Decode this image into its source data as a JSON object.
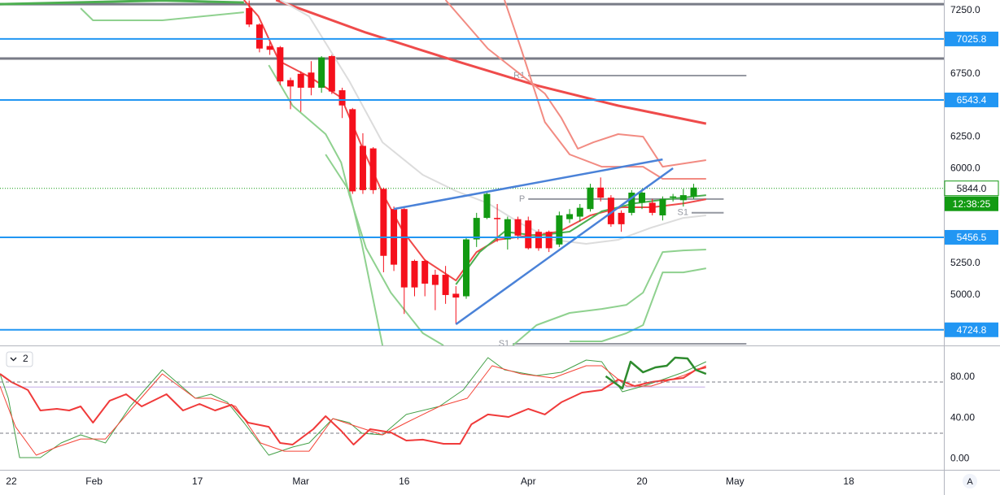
{
  "chart_data": [
    {
      "type": "candlestick",
      "x": [
        -5,
        -4,
        -3,
        -2,
        -1,
        0,
        1,
        2,
        3,
        4,
        5,
        6,
        7,
        8,
        9,
        10,
        11,
        12,
        13,
        14,
        15,
        16,
        17,
        18,
        19,
        20,
        21,
        22,
        23,
        24,
        25,
        26,
        27,
        28,
        29,
        30,
        31,
        32,
        33,
        34,
        35,
        36,
        37,
        38
      ],
      "open": [
        7270,
        7140,
        6970,
        6960,
        6700,
        6750,
        6760,
        6640,
        6890,
        6620,
        6470,
        6180,
        6160,
        5840,
        5680,
        5680,
        5270,
        5270,
        5160,
        5160,
        5010,
        4990,
        5440,
        5610,
        5610,
        5440,
        5600,
        5590,
        5500,
        5500,
        5400,
        5600,
        5620,
        5680,
        5850,
        5770,
        5650,
        5650,
        5730,
        5730,
        5630,
        5770,
        5750,
        5780
      ],
      "high": [
        7330,
        7150,
        7000,
        6970,
        6720,
        6770,
        6850,
        6890,
        6900,
        6640,
        6480,
        6280,
        6170,
        5850,
        5700,
        5690,
        5280,
        5280,
        5200,
        5230,
        5070,
        5460,
        5650,
        5810,
        5720,
        5620,
        5620,
        5620,
        5520,
        5510,
        5660,
        5680,
        5720,
        5880,
        5930,
        5790,
        5670,
        5830,
        5840,
        5760,
        5780,
        5800,
        5840,
        5880
      ],
      "low": [
        7120,
        6920,
        6900,
        6660,
        6470,
        6450,
        6580,
        6600,
        6590,
        6400,
        5800,
        5800,
        5800,
        5180,
        5190,
        4850,
        4990,
        4990,
        4880,
        4930,
        4770,
        4970,
        5380,
        5600,
        5420,
        5360,
        5440,
        5360,
        5350,
        5340,
        5380,
        5570,
        5580,
        5660,
        5740,
        5540,
        5500,
        5630,
        5680,
        5630,
        5590,
        5740,
        5700,
        5760
      ],
      "close": [
        7140,
        6950,
        6940,
        6690,
        6650,
        6640,
        6640,
        6880,
        6610,
        6500,
        5820,
        5830,
        5830,
        5310,
        5240,
        5060,
        5060,
        5090,
        5080,
        5000,
        4980,
        5440,
        5610,
        5800,
        5600,
        5600,
        5470,
        5370,
        5370,
        5370,
        5630,
        5640,
        5690,
        5850,
        5770,
        5560,
        5560,
        5810,
        5810,
        5650,
        5760,
        5780,
        5790,
        5850
      ],
      "up_color": "#129a12",
      "down_color": "#f5101c",
      "xlim": [
        -29.1,
        62.2
      ],
      "xticks": [
        {
          "value": -28,
          "label": "22"
        },
        {
          "value": -20,
          "label": "Feb"
        },
        {
          "value": -10,
          "label": "17"
        },
        {
          "value": 0,
          "label": "Mar"
        },
        {
          "value": 10,
          "label": "16"
        },
        {
          "value": 22,
          "label": "Apr"
        },
        {
          "value": 33,
          "label": "20"
        },
        {
          "value": 42,
          "label": "May"
        },
        {
          "value": 53,
          "label": "18"
        }
      ],
      "ylim": [
        4601,
        7334
      ],
      "yticks": [
        {
          "value": 7250,
          "label": "7250.0"
        },
        {
          "value": 6750,
          "label": "6750.0"
        },
        {
          "value": 6250,
          "label": "6250.0"
        },
        {
          "value": 6000,
          "label": "6000.0"
        },
        {
          "value": 5250,
          "label": "5250.0"
        },
        {
          "value": 5000,
          "label": "5000.0"
        }
      ],
      "grid": false,
      "overlays": [
        {
          "color": "#ef4b4b",
          "width": 3,
          "x": [
            -2.4,
            6.3,
            15,
            22.8,
            30.7,
            39.2
          ],
          "values": [
            7334,
            7076,
            6851,
            6658,
            6498,
            6356
          ]
        },
        {
          "color": "#f28b82",
          "width": 2,
          "x": [
            14,
            18.1,
            23.6,
            25.2,
            26.8,
            28.3,
            30.7,
            33.1,
            35,
            39.2
          ],
          "values": [
            7334,
            6948,
            6594,
            6401,
            6157,
            6208,
            6273,
            6253,
            6015,
            6067
          ]
        },
        {
          "color": "#f28b82",
          "width": 2,
          "x": [
            19.7,
            21.3,
            23.6,
            26,
            29.1,
            33.1,
            35,
            39.2
          ],
          "values": [
            7334,
            6948,
            6369,
            6112,
            6015,
            6015,
            5919,
            5919
          ]
        },
        {
          "color": "#f04a4a",
          "width": 2,
          "x": [
            -5.5,
            -4.1,
            -2.1,
            0.9,
            3.9,
            5.9,
            8,
            9.9,
            12,
            15,
            17,
            19,
            22,
            25,
            28,
            31,
            34,
            37.1,
            39.2
          ],
          "values": [
            7334,
            7205,
            6851,
            6723,
            6562,
            6176,
            5790,
            5501,
            5276,
            5115,
            5340,
            5437,
            5469,
            5501,
            5630,
            5694,
            5694,
            5726,
            5758
          ]
        },
        {
          "color": "#dcdcdc",
          "width": 2,
          "x": [
            -2,
            0.8,
            4.7,
            7.9,
            11.8,
            15,
            18.1,
            21.3,
            24.4,
            27.6,
            30.7,
            33.9,
            37,
            39.2
          ],
          "values": [
            7334,
            7205,
            6691,
            6208,
            5951,
            5823,
            5726,
            5565,
            5437,
            5405,
            5437,
            5533,
            5610,
            5630
          ]
        },
        {
          "color": "#4caf50",
          "width": 3,
          "x": [
            -29.1,
            -13.4,
            -5.5
          ],
          "values": [
            7301,
            7330,
            7314
          ]
        },
        {
          "color": "#8fd18f",
          "width": 2,
          "x": [
            -21.3,
            -20.1,
            -13.4,
            -5.5
          ],
          "values": [
            7269,
            7173,
            7173,
            7237
          ]
        },
        {
          "color": "#8fd18f",
          "width": 2,
          "x": [
            -3.1,
            -0.8,
            2.4,
            3.9,
            4.7,
            6.3,
            8.7,
            11.8,
            13.8
          ],
          "values": [
            6819,
            6498,
            6273,
            6048,
            5790,
            5372,
            5019,
            4698,
            4601
          ]
        },
        {
          "color": "#8fd18f",
          "width": 2,
          "x": [
            2.4,
            4.7,
            5.9,
            7.9
          ],
          "values": [
            6112,
            5823,
            5405,
            4601
          ]
        },
        {
          "color": "#4caf50",
          "width": 2,
          "x": [
            15,
            17.3,
            19.7,
            22.8,
            26,
            29.1,
            32.3,
            35.4,
            39.2
          ],
          "values": [
            5083,
            5340,
            5501,
            5469,
            5501,
            5662,
            5726,
            5758,
            5790
          ]
        },
        {
          "color": "#8fd18f",
          "width": 2,
          "x": [
            20.5,
            22.8,
            26,
            29.1,
            31.5,
            33.1,
            35,
            37,
            39.2
          ],
          "values": [
            4601,
            4762,
            4858,
            4890,
            4922,
            5019,
            5340,
            5353,
            5360
          ]
        },
        {
          "color": "#8fd18f",
          "width": 2,
          "x": [
            26,
            29.1,
            31.5,
            33.1,
            35,
            37,
            39.2
          ],
          "values": [
            4633,
            4633,
            4698,
            4762,
            5179,
            5179,
            5211
          ]
        }
      ],
      "levels": [
        {
          "value": 7025.8,
          "color": "#2196f3"
        },
        {
          "value": 6543.4,
          "color": "#2196f3"
        },
        {
          "value": 5456.5,
          "color": "#2196f3"
        },
        {
          "value": 4724.8,
          "color": "#2196f3"
        }
      ],
      "gray_levels": [
        7301,
        6871
      ],
      "pivots": [
        {
          "label": "R1",
          "value": 6736,
          "x": [
            22,
            43.1
          ]
        },
        {
          "label": "P",
          "value": 5759,
          "x": [
            22,
            40.9
          ]
        },
        {
          "label": "S1",
          "value": 5651,
          "x": [
            37.8,
            40.9
          ]
        },
        {
          "label": "S1",
          "value": 4614,
          "x": [
            20.5,
            43.1
          ]
        }
      ],
      "trendlines": [
        {
          "x": [
            9,
            35
          ],
          "values": [
            5681,
            6073
          ]
        },
        {
          "x": [
            15,
            36
          ],
          "values": [
            4768,
            6003
          ]
        }
      ],
      "last_price": {
        "value": 5844,
        "label": "5844.0"
      },
      "countdown": "12:38:25",
      "scale_mode": "A"
    },
    {
      "type": "line",
      "pane_label": "2",
      "ylim": [
        -10.7,
        110.7
      ],
      "yticks": [
        {
          "value": 80,
          "label": "80.00"
        },
        {
          "value": 40,
          "label": "40.00"
        },
        {
          "value": 0,
          "label": "0.00"
        }
      ],
      "bands": [
        75,
        25
      ],
      "level_line": 70,
      "lines": [
        {
          "color": "#43a047",
          "width": 1,
          "x": [
            -29.1,
            -28.3,
            -27.2,
            -25.2,
            -23.2,
            -21.3,
            -18.9,
            -16.5,
            -13.4,
            -10.2,
            -8.7,
            -7.1,
            -5.5,
            -3.1,
            -0.8,
            0.8,
            3.1,
            4.7,
            5.9,
            7.9,
            10.2,
            13.4,
            15.7,
            18.1,
            19.7,
            22.8,
            25.2,
            27.6,
            29.1,
            31.1,
            33.1,
            35,
            37,
            39.2
          ],
          "values": [
            82.9,
            59.1,
            1.2,
            1.2,
            15.5,
            23.4,
            15.5,
            51.2,
            86.9,
            59.1,
            63.1,
            55.2,
            35.3,
            3.6,
            11.5,
            15.5,
            39.3,
            35.3,
            25,
            23.4,
            43.3,
            51.2,
            67.1,
            98.8,
            86.9,
            81.3,
            84.5,
            96.4,
            94.8,
            65.5,
            71,
            77.4,
            84.5,
            94.8
          ]
        },
        {
          "color": "#f44336",
          "width": 1,
          "x": [
            -29.1,
            -27.6,
            -25.6,
            -23.6,
            -21.3,
            -18.9,
            -16.5,
            -13.4,
            -10.2,
            -8.7,
            -6.3,
            -3.9,
            -1.6,
            0.8,
            3.1,
            5.5,
            7.9,
            10.2,
            13.4,
            16.1,
            18.5,
            21.3,
            24.4,
            27.6,
            29.1,
            31.5,
            33.9,
            37,
            39.2
          ],
          "values": [
            71,
            31.3,
            3.6,
            11.5,
            19.4,
            19.4,
            47.2,
            82.9,
            59.1,
            59.1,
            51.2,
            15.5,
            7.5,
            7.5,
            39.3,
            31.3,
            23.4,
            35.3,
            51.2,
            59.1,
            90.9,
            82.9,
            79,
            90.9,
            90.9,
            71,
            71,
            81.3,
            90.9
          ]
        },
        {
          "color": "#f03a3a",
          "width": 2,
          "x": [
            -29.1,
            -28,
            -26.4,
            -25.2,
            -23.6,
            -22.4,
            -21.3,
            -20.1,
            -18.5,
            -16.9,
            -15.4,
            -13,
            -11.4,
            -9.8,
            -8.3,
            -6.7,
            -5.1,
            -3.1,
            -2,
            -0.8,
            1.2,
            2.4,
            3.9,
            5.1,
            6.7,
            8.7,
            10.2,
            11.8,
            13.8,
            15.4,
            16.5,
            18.1,
            20.1,
            22,
            23.6,
            25.2,
            27.2,
            29.1,
            30.7,
            32.3,
            33.9,
            37,
            38.2,
            39.2
          ],
          "values": [
            82.9,
            75,
            67.1,
            47.2,
            48.8,
            47.2,
            51.2,
            35.3,
            56.7,
            63.1,
            51.2,
            63.1,
            47.2,
            53.6,
            47.2,
            52.8,
            35.3,
            31.3,
            15.5,
            13.9,
            29,
            41.7,
            27.4,
            13.9,
            29,
            25.8,
            17.9,
            18.7,
            14.7,
            14.7,
            33.7,
            43.3,
            40.9,
            48.8,
            43.3,
            55.2,
            64.7,
            67.1,
            77.4,
            71,
            75,
            79,
            86.9,
            89.3
          ]
        },
        {
          "color": "#2e8b2e",
          "width": 2.5,
          "x": [
            29.5,
            31.1,
            31.9,
            33.1,
            34.3,
            35.4,
            36.2,
            37.4,
            38.2,
            39.2
          ],
          "values": [
            80.6,
            68.7,
            94.8,
            84.5,
            89.3,
            90.9,
            98.8,
            98,
            86.9,
            82.9
          ]
        }
      ]
    }
  ]
}
